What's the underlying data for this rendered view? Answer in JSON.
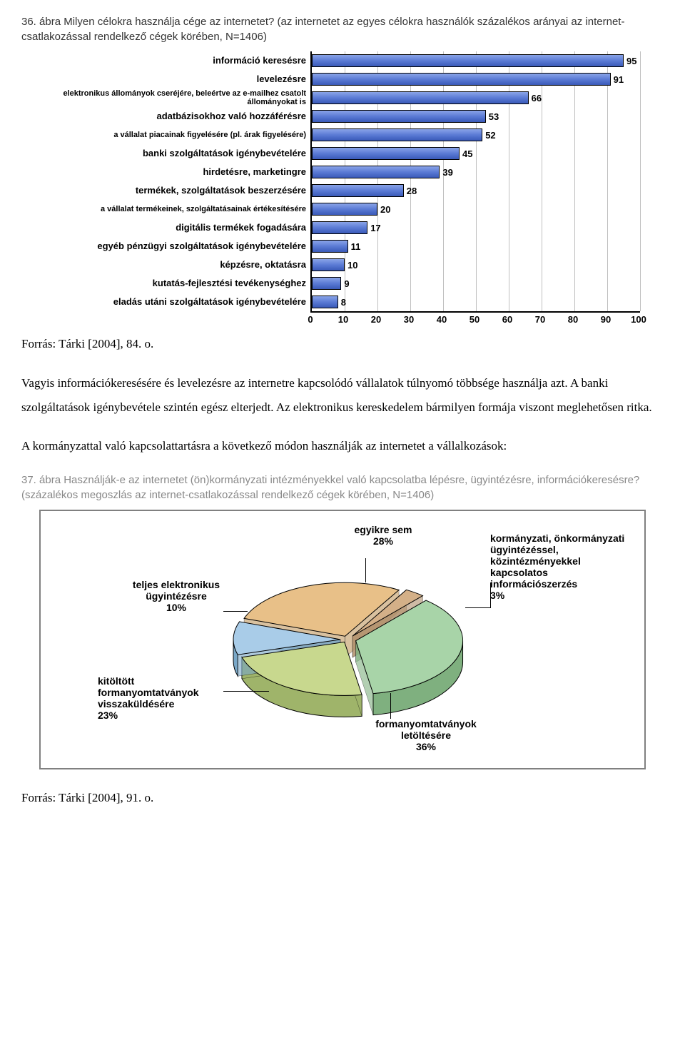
{
  "chart1": {
    "type": "bar",
    "title": "36. ábra Milyen célokra használja cége az internetet? (az internetet az egyes célokra használók százalékos arányai az internet-csatlakozással rendelkező cégek körében, N=1406)",
    "bar_color": "#5b7bd5",
    "border_color": "#000000",
    "grid_color": "#bfbfbf",
    "xlim": [
      0,
      100
    ],
    "xtick_step": 10,
    "label_fontsize": 13,
    "categories": [
      "információ keresésre",
      "levelezésre",
      "elektronikus állományok cseréjére, beleértve az e-mailhez csatolt állományokat is",
      "adatbázisokhoz való hozzáférésre",
      "a vállalat piacainak figyelésére (pl. árak figyelésére)",
      "banki szolgáltatások igénybevételére",
      "hirdetésre, marketingre",
      "termékek, szolgáltatások beszerzésére",
      "a vállalat termékeinek, szolgáltatásainak értékesítésére",
      "digitális termékek fogadására",
      "egyéb pénzügyi szolgáltatások igénybevételére",
      "képzésre, oktatásra",
      "kutatás-fejlesztési tevékenységhez",
      "eladás utáni szolgáltatások igénybevételére"
    ],
    "values": [
      95,
      91,
      66,
      53,
      52,
      45,
      39,
      28,
      20,
      17,
      11,
      10,
      9,
      8
    ]
  },
  "source1": "Forrás: Tárki [2004], 84. o.",
  "para1": "Vagyis információkeresésére és levelezésre az internetre kapcsolódó vállalatok túlnyomó többsége használja azt. A banki szolgáltatások igénybevétele szintén egész elterjedt. Az elektronikus kereskedelem bármilyen formája viszont meglehetősen ritka.",
  "para2": "A kormányzattal való kapcsolattartásra a következő módon használják az internetet a vállalkozások:",
  "chart2": {
    "type": "pie",
    "title": "37. ábra Használják-e az internetet (ön)kormányzati intézményekkel való kapcsolatba lépésre, ügyintézésre, információkeresésre? (százalékos megoszlás az internet-csatlakozással rendelkező cégek körében, N=1406)",
    "slices": [
      {
        "label": "teljes elektronikus ügyintézésre",
        "value": 10,
        "top_color": "#a9cce8",
        "side_color": "#7aa8c8"
      },
      {
        "label": "kitöltött formanyomtatványok visszaküldésére",
        "value": 23,
        "top_color": "#c8d88e",
        "side_color": "#9fb46a"
      },
      {
        "label": "formanyomtatványok letöltésére",
        "value": 36,
        "top_color": "#a8d4a8",
        "side_color": "#7fb07f"
      },
      {
        "label": "kormányzati, önkormányzati ügyintézéssel, közintézményekkel kapcsolatos információszerzés",
        "value": 3,
        "top_color": "#d4b088",
        "side_color": "#b08f6a"
      },
      {
        "label": "egyikre sem",
        "value": 28,
        "top_color": "#e8c088",
        "side_color": "#c09860"
      }
    ]
  },
  "source2": "Forrás: Tárki [2004], 91. o."
}
